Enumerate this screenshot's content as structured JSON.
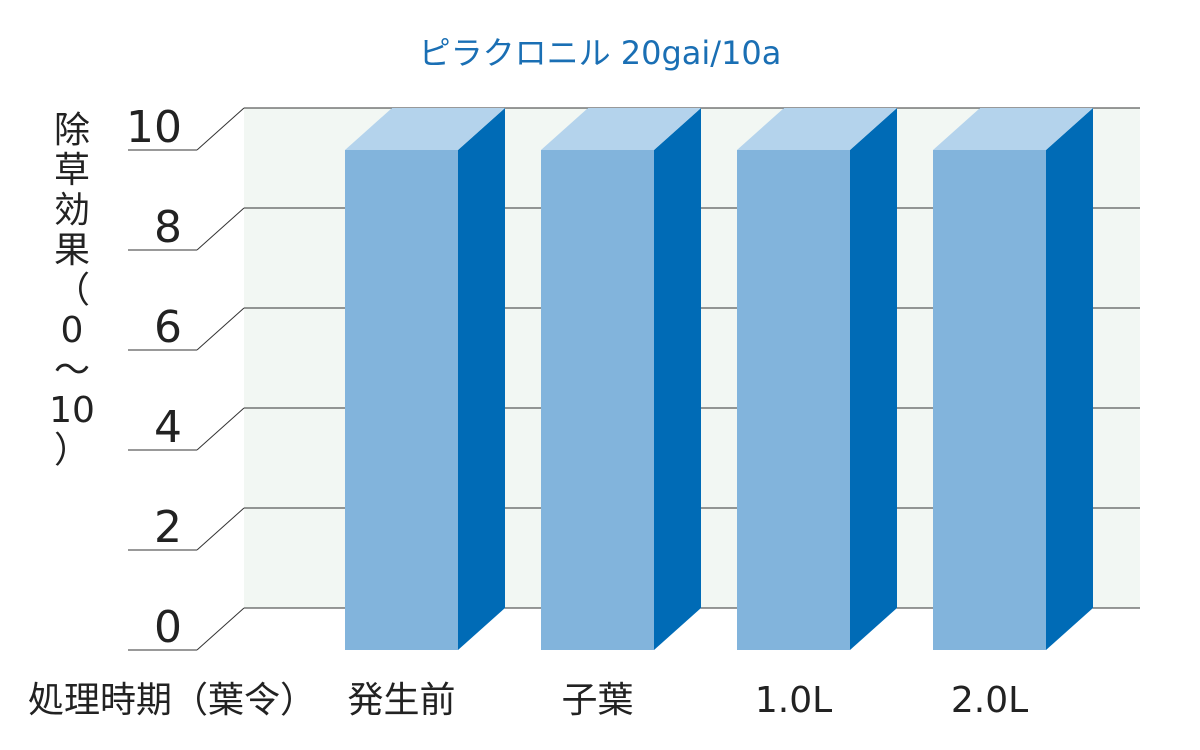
{
  "chart_data": {
    "type": "bar",
    "title": "ピラクロニル 20gai/10a",
    "ylabel": "除草効果（0～10）",
    "ylabel_chars": [
      "除",
      "草",
      "効",
      "果",
      "（",
      "0",
      "～",
      "10",
      "）"
    ],
    "xlabel": "処理時期（葉令）",
    "categories": [
      "発生前",
      "子葉",
      "1.0L",
      "2.0L"
    ],
    "values": [
      10,
      10,
      10,
      10
    ],
    "ylim": [
      0,
      10
    ],
    "yticks": [
      "0",
      "2",
      "4",
      "6",
      "8",
      "10"
    ],
    "grid": true,
    "colors": {
      "bar_front": "#82b4dc",
      "bar_side": "#006bb6",
      "bar_top": "#b4d3ec",
      "wall": "#f2f7f3",
      "background": "#ffffff",
      "title": "#1a6fb4"
    }
  }
}
